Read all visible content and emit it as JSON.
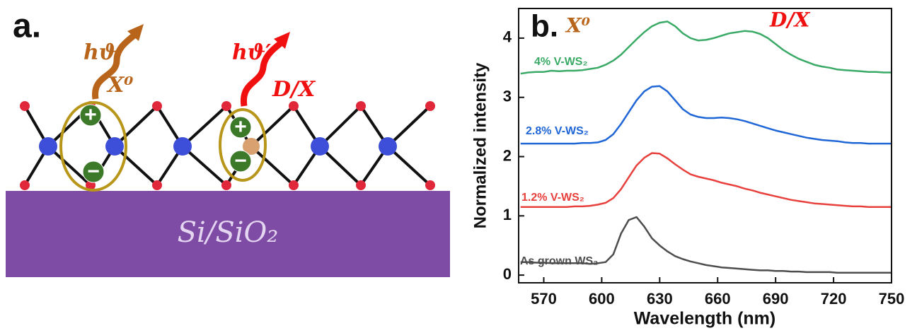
{
  "panel_a": {
    "label": "a.",
    "photon_1": "hϑ",
    "exciton": "X⁰",
    "photon_2": "hϑ′",
    "defect": "D/X",
    "charges": [
      "+",
      "−",
      "+",
      "−"
    ],
    "substrate": "Si/SiO₂"
  },
  "chart_data": {
    "type": "line",
    "panel_label": "b.",
    "annotations": [
      "X⁰",
      "D/X"
    ],
    "xlabel": "Wavelength (nm)",
    "ylabel": "Normalized intensity",
    "xlim": [
      557,
      750
    ],
    "ylim": [
      -0.13,
      4.5
    ],
    "xticks": [
      570,
      600,
      630,
      660,
      690,
      720,
      750
    ],
    "yticks": [
      0,
      1,
      2,
      3,
      4
    ],
    "x": [
      558,
      562,
      566,
      570,
      574,
      578,
      582,
      586,
      590,
      594,
      598,
      602,
      606,
      610,
      614,
      618,
      622,
      626,
      630,
      634,
      638,
      642,
      646,
      650,
      654,
      658,
      662,
      666,
      670,
      674,
      678,
      682,
      686,
      690,
      694,
      698,
      702,
      706,
      710,
      714,
      718,
      722,
      726,
      730,
      734,
      738,
      742,
      746,
      750
    ],
    "series": [
      {
        "name": "As grown WS₂",
        "color": "#4d4d4d",
        "values": [
          0.22,
          0.22,
          0.21,
          0.21,
          0.2,
          0.2,
          0.2,
          0.2,
          0.2,
          0.19,
          0.2,
          0.22,
          0.35,
          0.7,
          0.93,
          0.98,
          0.82,
          0.62,
          0.5,
          0.4,
          0.32,
          0.27,
          0.23,
          0.2,
          0.17,
          0.15,
          0.13,
          0.12,
          0.11,
          0.1,
          0.09,
          0.08,
          0.08,
          0.07,
          0.07,
          0.06,
          0.06,
          0.05,
          0.05,
          0.05,
          0.05,
          0.04,
          0.04,
          0.04,
          0.04,
          0.04,
          0.04,
          0.04,
          0.04
        ]
      },
      {
        "name": "1.2% V-WS₂",
        "color": "#e8413d",
        "values": [
          1.15,
          1.15,
          1.15,
          1.15,
          1.15,
          1.15,
          1.15,
          1.16,
          1.16,
          1.17,
          1.19,
          1.22,
          1.3,
          1.45,
          1.65,
          1.85,
          1.98,
          2.06,
          2.05,
          1.97,
          1.87,
          1.78,
          1.7,
          1.66,
          1.63,
          1.6,
          1.56,
          1.53,
          1.5,
          1.46,
          1.43,
          1.39,
          1.36,
          1.33,
          1.3,
          1.27,
          1.25,
          1.23,
          1.21,
          1.2,
          1.19,
          1.18,
          1.17,
          1.16,
          1.16,
          1.15,
          1.15,
          1.15,
          1.15
        ]
      },
      {
        "name": "2.8% V-WS₂",
        "color": "#1f66d6",
        "values": [
          2.22,
          2.22,
          2.22,
          2.22,
          2.22,
          2.22,
          2.22,
          2.22,
          2.23,
          2.23,
          2.24,
          2.28,
          2.38,
          2.55,
          2.75,
          2.95,
          3.1,
          3.18,
          3.19,
          3.1,
          2.95,
          2.8,
          2.71,
          2.67,
          2.65,
          2.65,
          2.66,
          2.65,
          2.63,
          2.6,
          2.56,
          2.52,
          2.48,
          2.44,
          2.41,
          2.38,
          2.35,
          2.32,
          2.3,
          2.28,
          2.27,
          2.26,
          2.24,
          2.23,
          2.23,
          2.22,
          2.22,
          2.22,
          2.22
        ]
      },
      {
        "name": "4% V-WS₂",
        "color": "#3aaa66",
        "values": [
          3.4,
          3.42,
          3.43,
          3.43,
          3.45,
          3.44,
          3.45,
          3.45,
          3.46,
          3.48,
          3.5,
          3.55,
          3.62,
          3.72,
          3.85,
          3.98,
          4.1,
          4.2,
          4.26,
          4.28,
          4.2,
          4.08,
          4.0,
          3.96,
          3.97,
          4.0,
          4.04,
          4.08,
          4.1,
          4.12,
          4.11,
          4.07,
          4.0,
          3.9,
          3.8,
          3.72,
          3.65,
          3.6,
          3.55,
          3.52,
          3.5,
          3.47,
          3.46,
          3.45,
          3.44,
          3.43,
          3.43,
          3.42,
          3.42
        ]
      }
    ]
  }
}
